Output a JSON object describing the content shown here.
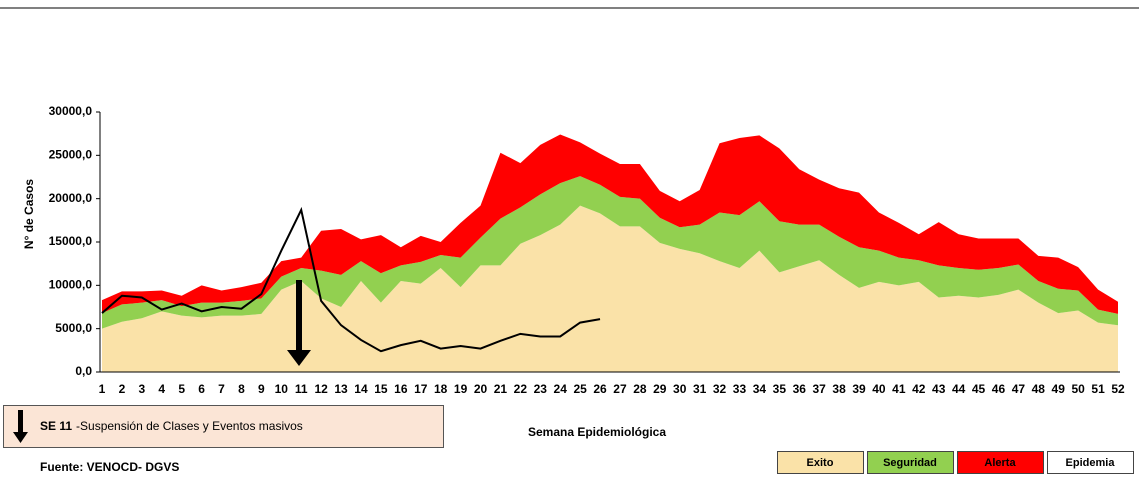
{
  "chart_data": {
    "type": "area",
    "y_label": "N° de Casos",
    "x_label": "Semana Epidemiológica",
    "source": "Fuente: VENOCD- DGVS",
    "annotation": {
      "bold": "SE 11",
      "text": "-Suspensión de Clases  y Eventos masivos"
    },
    "legend": "bottom-right",
    "categories": [
      "1",
      "2",
      "3",
      "4",
      "5",
      "6",
      "7",
      "8",
      "9",
      "10",
      "11",
      "12",
      "13",
      "14",
      "15",
      "16",
      "17",
      "18",
      "19",
      "20",
      "21",
      "22",
      "23",
      "24",
      "25",
      "26",
      "27",
      "28",
      "29",
      "30",
      "31",
      "32",
      "33",
      "34",
      "35",
      "36",
      "37",
      "38",
      "39",
      "40",
      "41",
      "42",
      "43",
      "44",
      "45",
      "46",
      "47",
      "48",
      "49",
      "50",
      "51",
      "52"
    ],
    "ylim": [
      0,
      30000
    ],
    "yticks": [
      {
        "value": 0,
        "label": "0,0"
      },
      {
        "value": 5000,
        "label": "5000,0"
      },
      {
        "value": 10000,
        "label": "10000,0"
      },
      {
        "value": 15000,
        "label": "15000,0"
      },
      {
        "value": 20000,
        "label": "20000,0"
      },
      {
        "value": 25000,
        "label": "25000,0"
      },
      {
        "value": 30000,
        "label": "30000,0"
      }
    ],
    "series": [
      {
        "name": "Exito",
        "type": "area",
        "stacked": true,
        "color": "#fae2a8",
        "values": [
          5000,
          5800,
          6200,
          7000,
          6500,
          6300,
          6500,
          6500,
          6700,
          9500,
          10500,
          8500,
          7500,
          10500,
          8000,
          10500,
          10200,
          12000,
          9800,
          12300,
          12300,
          14800,
          15800,
          17000,
          19200,
          18300,
          16800,
          16800,
          14900,
          14200,
          13700,
          12800,
          12000,
          14000,
          11500,
          12200,
          12900,
          11200,
          9700,
          10400,
          10000,
          10400,
          8600,
          8800,
          8600,
          8900,
          9500,
          8000,
          6800,
          7100,
          5700,
          5400
        ]
      },
      {
        "name": "Seguridad",
        "type": "area",
        "stacked": true,
        "color": "#92d050",
        "values": [
          1800,
          2000,
          1800,
          1300,
          1100,
          1700,
          1500,
          1700,
          1800,
          1500,
          1500,
          3200,
          3700,
          2300,
          3400,
          1800,
          2500,
          1500,
          3400,
          3200,
          5400,
          4200,
          4700,
          4800,
          3400,
          3300,
          3400,
          3200,
          2900,
          2500,
          3300,
          5600,
          6100,
          5700,
          5900,
          4800,
          4100,
          4400,
          4700,
          3600,
          3200,
          2500,
          3700,
          3200,
          3200,
          3100,
          2900,
          2500,
          2800,
          2300,
          1500,
          1300
        ]
      },
      {
        "name": "Alerta",
        "type": "area",
        "stacked": true,
        "color": "#ff0000",
        "values": [
          1500,
          1500,
          1300,
          1100,
          1200,
          2000,
          1400,
          1600,
          1800,
          1800,
          1200,
          4600,
          5300,
          2500,
          4400,
          2100,
          3000,
          1500,
          4000,
          3700,
          7600,
          5100,
          5700,
          5600,
          3900,
          3600,
          3800,
          4000,
          3100,
          3000,
          4000,
          8000,
          8900,
          7600,
          8400,
          6400,
          5200,
          5600,
          6300,
          4400,
          4000,
          3000,
          5000,
          3900,
          3600,
          3400,
          3000,
          2900,
          3600,
          2700,
          2300,
          1400
        ]
      },
      {
        "name": "Epidemia",
        "type": "line",
        "color": "#000000",
        "values": [
          6800,
          8800,
          8600,
          7200,
          7900,
          7000,
          7500,
          7300,
          9000,
          14000,
          18700,
          8200,
          5400,
          3700,
          2400,
          3100,
          3600,
          2700,
          3000,
          2700,
          3600,
          4400,
          4100,
          4100,
          5700,
          6100,
          null,
          null,
          null,
          null,
          null,
          null,
          null,
          null,
          null,
          null,
          null,
          null,
          null,
          null,
          null,
          null,
          null,
          null,
          null,
          null,
          null,
          null,
          null,
          null,
          null,
          null
        ]
      }
    ]
  }
}
